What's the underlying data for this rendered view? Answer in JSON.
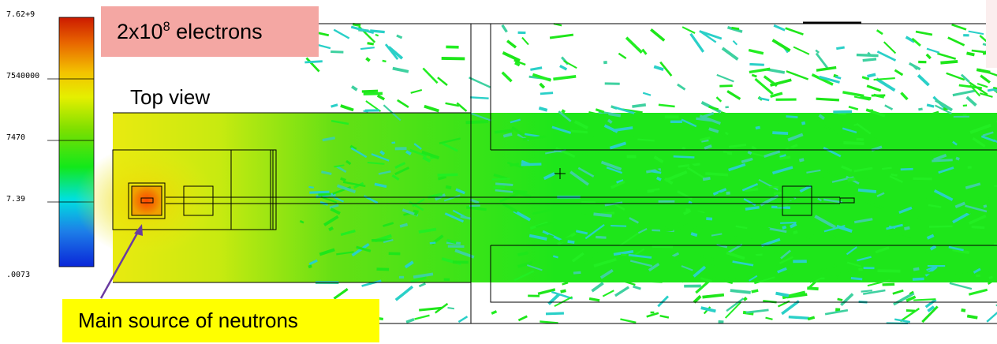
{
  "colorbar": {
    "labels": [
      "7.62+9",
      "7540000",
      "7470",
      "7.39",
      ".0073"
    ],
    "gradient_colors": [
      "#cc1a00",
      "#e86400",
      "#f3c200",
      "#e5ef00",
      "#7ddf00",
      "#12e81a",
      "#00e0e0",
      "#1d7de8",
      "#0a26d8"
    ]
  },
  "title_box": {
    "mantissa": "2x10",
    "exponent": "8",
    "suffix": " electrons",
    "color": "#f4a7a3"
  },
  "view_label": "Top view",
  "source_label": {
    "text": "Main source of neutrons",
    "color": "#ffff00"
  },
  "arrow_color": "#6a3ba0"
}
